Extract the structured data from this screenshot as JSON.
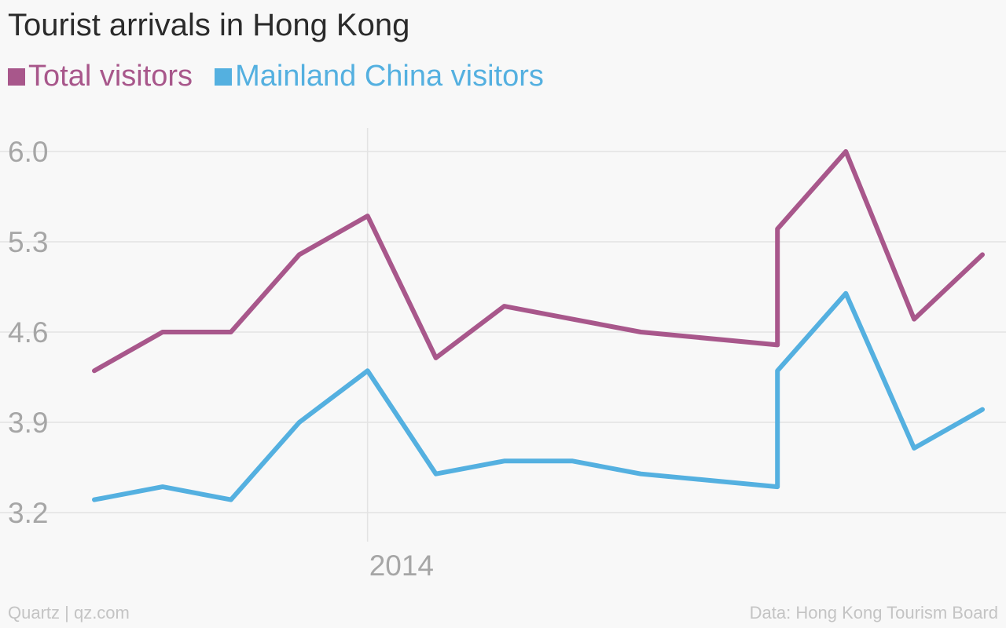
{
  "title": "Tourist arrivals in Hong Kong",
  "colors": {
    "total": "#a8578b",
    "mainland": "#54b0e0",
    "grid": "#e3e3e3",
    "tick": "#a6a6a6"
  },
  "chart_data": {
    "type": "line",
    "title": "Tourist arrivals in Hong Kong",
    "x_tick_label": "2014",
    "x_tick_index": 4,
    "yticks": [
      "6.0",
      "5.3",
      "4.6",
      "3.9",
      "3.2"
    ],
    "ylim": [
      3.2,
      6.0
    ],
    "grid": true,
    "legend_position": "top-left",
    "series": [
      {
        "name": "Total visitors",
        "color": "#a8578b",
        "points": [
          [
            0,
            4.3
          ],
          [
            1,
            4.6
          ],
          [
            2,
            4.6
          ],
          [
            3,
            5.2
          ],
          [
            4,
            5.5
          ],
          [
            5,
            4.4
          ],
          [
            6,
            4.8
          ],
          [
            7,
            4.7
          ],
          [
            8,
            4.6
          ],
          [
            10,
            4.5
          ],
          [
            10,
            5.4
          ],
          [
            11,
            6.0
          ],
          [
            12,
            4.7
          ],
          [
            13,
            5.2
          ]
        ]
      },
      {
        "name": "Mainland China visitors",
        "color": "#54b0e0",
        "points": [
          [
            0,
            3.3
          ],
          [
            1,
            3.4
          ],
          [
            2,
            3.3
          ],
          [
            3,
            3.9
          ],
          [
            4,
            4.3
          ],
          [
            5,
            3.5
          ],
          [
            6,
            3.6
          ],
          [
            7,
            3.6
          ],
          [
            8,
            3.5
          ],
          [
            10,
            3.4
          ],
          [
            10,
            4.3
          ],
          [
            11,
            4.9
          ],
          [
            12,
            3.7
          ],
          [
            13,
            4.0
          ]
        ]
      }
    ]
  },
  "footer": {
    "left": "Quartz | qz.com",
    "right": "Data: Hong Kong Tourism Board"
  }
}
